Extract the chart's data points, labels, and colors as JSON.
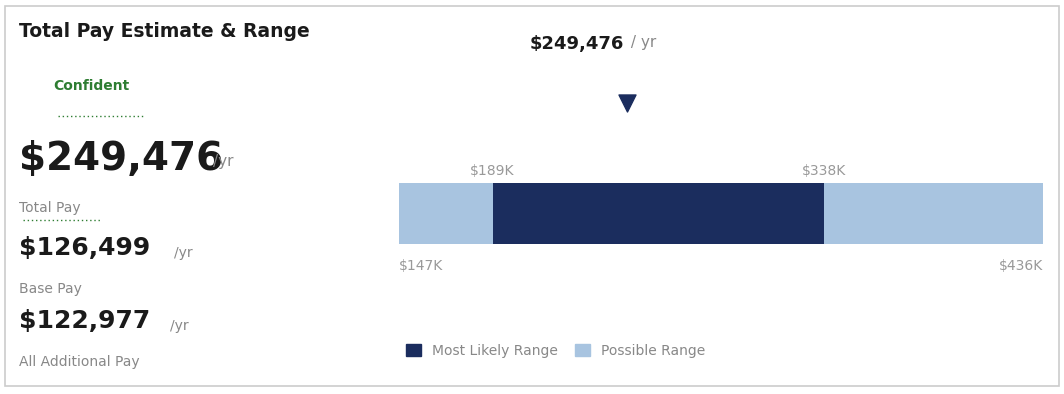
{
  "title": "Total Pay Estimate & Range",
  "confident_label": "Confident",
  "total_pay_value": "$249,476",
  "total_pay_label": "Total Pay",
  "base_pay_value": "$126,499",
  "base_pay_label": "Base Pay",
  "additional_pay_value": "$122,977",
  "additional_pay_label": "All Additional Pay",
  "bar_min": 147000,
  "bar_max": 436000,
  "possible_range_min": 147000,
  "possible_range_max": 436000,
  "most_likely_min": 189000,
  "most_likely_max": 338000,
  "median_value": 249476,
  "left_label": "$189K",
  "right_label": "$338K",
  "far_left_label": "$147K",
  "far_right_label": "$436K",
  "median_bold": "$249,476",
  "median_suffix": " / yr",
  "possible_range_color": "#a8c4e0",
  "most_likely_color": "#1b2d5e",
  "background_color": "#ffffff",
  "border_color": "#cccccc",
  "title_color": "#1a1a1a",
  "confident_color": "#2e7d32",
  "label_color": "#888888",
  "value_color": "#1a1a1a",
  "axis_label_color": "#999999",
  "yr_suffix": "/yr"
}
